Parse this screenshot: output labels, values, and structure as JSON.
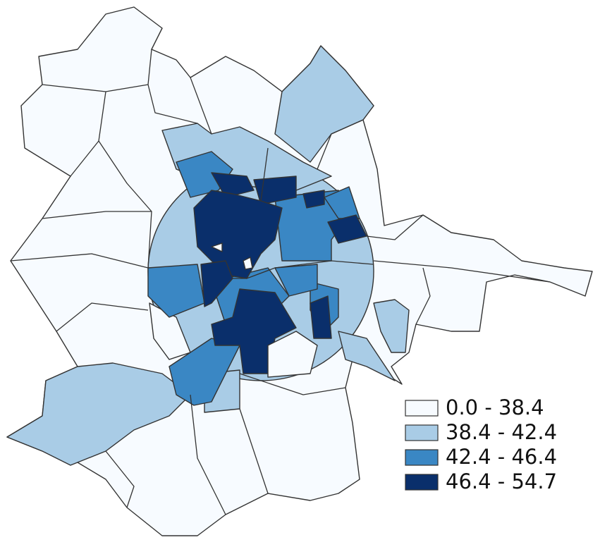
{
  "legend": [
    {
      "label": "0.0 - 38.4",
      "color": "#f7fbff"
    },
    {
      "label": "38.4 - 42.4",
      "color": "#a9cce6"
    },
    {
      "label": "42.4 - 46.4",
      "color": "#3a87c4"
    },
    {
      "label": "46.4 - 54.7",
      "color": "#0a2f6b"
    }
  ]
}
